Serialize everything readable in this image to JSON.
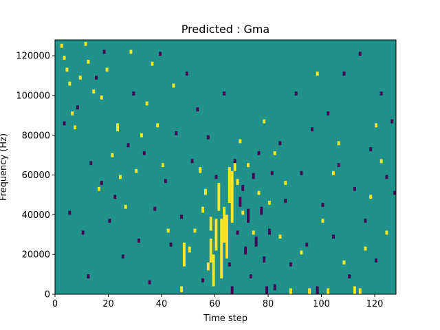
{
  "chart_data": {
    "type": "heatmap",
    "title": "Predicted : Gma",
    "xlabel": "Time step",
    "ylabel": "Frequency (Hz)",
    "xlim": [
      0,
      128
    ],
    "ylim": [
      0,
      128000
    ],
    "x_ticks": [
      0,
      20,
      40,
      60,
      80,
      100,
      120
    ],
    "y_ticks": [
      0,
      20000,
      40000,
      60000,
      80000,
      100000,
      120000
    ],
    "x_tick_labels": [
      "0",
      "20",
      "40",
      "60",
      "80",
      "100",
      "120"
    ],
    "y_tick_labels": [
      "0",
      "20000",
      "40000",
      "60000",
      "80000",
      "100000",
      "120000"
    ],
    "grid": false,
    "n_time_steps": 128,
    "n_freq_bins": 128,
    "freq_bin_hz": 1000,
    "colormap": "viridis",
    "levels": {
      "low": 0,
      "mid": 1,
      "high": 2
    },
    "level_colors": {
      "low": "#440154",
      "mid": "#21918c",
      "high": "#fde725"
    },
    "background_level": "mid",
    "cells": {
      "high": [
        [
          2,
          124,
          2
        ],
        [
          3,
          118,
          2
        ],
        [
          4,
          112,
          2
        ],
        [
          5,
          105,
          2
        ],
        [
          6,
          90,
          2
        ],
        [
          7,
          83,
          2
        ],
        [
          9,
          108,
          2
        ],
        [
          11,
          125,
          2
        ],
        [
          12,
          116,
          2
        ],
        [
          14,
          101,
          2
        ],
        [
          16,
          52,
          2
        ],
        [
          17,
          98,
          2
        ],
        [
          19,
          112,
          2
        ],
        [
          21,
          69,
          2
        ],
        [
          23,
          82,
          4
        ],
        [
          24,
          58,
          2
        ],
        [
          26,
          43,
          2
        ],
        [
          28,
          121,
          2
        ],
        [
          30,
          61,
          2
        ],
        [
          32,
          79,
          2
        ],
        [
          34,
          95,
          2
        ],
        [
          36,
          115,
          2
        ],
        [
          38,
          84,
          2
        ],
        [
          40,
          64,
          2
        ],
        [
          42,
          31,
          2
        ],
        [
          44,
          104,
          2
        ],
        [
          47,
          1,
          3
        ],
        [
          48,
          14,
          12
        ],
        [
          50,
          21,
          3
        ],
        [
          52,
          31,
          2
        ],
        [
          54,
          61,
          3
        ],
        [
          55,
          41,
          3
        ],
        [
          56,
          50,
          3
        ],
        [
          57,
          12,
          4
        ],
        [
          58,
          32,
          7
        ],
        [
          58,
          16,
          12
        ],
        [
          59,
          4,
          16
        ],
        [
          60,
          22,
          16
        ],
        [
          61,
          42,
          14
        ],
        [
          62,
          8,
          30
        ],
        [
          63,
          26,
          18
        ],
        [
          64,
          18,
          22
        ],
        [
          65,
          46,
          18
        ],
        [
          66,
          36,
          26
        ],
        [
          67,
          62,
          4
        ],
        [
          68,
          55,
          3
        ],
        [
          69,
          76,
          2
        ],
        [
          70,
          40,
          2
        ],
        [
          72,
          64,
          2
        ],
        [
          74,
          30,
          2
        ],
        [
          76,
          50,
          2
        ],
        [
          78,
          86,
          2
        ],
        [
          80,
          45,
          2
        ],
        [
          82,
          70,
          2
        ],
        [
          84,
          28,
          2
        ],
        [
          86,
          55,
          2
        ],
        [
          88,
          0,
          3
        ],
        [
          92,
          20,
          2
        ],
        [
          95,
          0,
          3
        ],
        [
          98,
          110,
          2
        ],
        [
          100,
          36,
          2
        ],
        [
          102,
          0,
          3
        ],
        [
          104,
          60,
          2
        ],
        [
          106,
          75,
          2
        ],
        [
          108,
          15,
          2
        ],
        [
          112,
          0,
          4
        ],
        [
          114,
          0,
          3
        ],
        [
          116,
          22,
          2
        ],
        [
          118,
          48,
          2
        ],
        [
          120,
          84,
          2
        ],
        [
          122,
          66,
          2
        ],
        [
          124,
          30,
          2
        ]
      ],
      "low": [
        [
          3,
          85,
          2
        ],
        [
          5,
          40,
          2
        ],
        [
          8,
          93,
          2
        ],
        [
          10,
          30,
          2
        ],
        [
          12,
          8,
          2
        ],
        [
          13,
          65,
          2
        ],
        [
          15,
          108,
          2
        ],
        [
          17,
          55,
          2
        ],
        [
          18,
          121,
          2
        ],
        [
          20,
          36,
          2
        ],
        [
          22,
          48,
          2
        ],
        [
          25,
          18,
          2
        ],
        [
          27,
          74,
          2
        ],
        [
          29,
          100,
          2
        ],
        [
          31,
          26,
          2
        ],
        [
          33,
          70,
          2
        ],
        [
          35,
          5,
          2
        ],
        [
          37,
          42,
          2
        ],
        [
          39,
          120,
          2
        ],
        [
          41,
          56,
          2
        ],
        [
          43,
          24,
          2
        ],
        [
          45,
          80,
          2
        ],
        [
          47,
          38,
          2
        ],
        [
          49,
          110,
          2
        ],
        [
          51,
          66,
          2
        ],
        [
          53,
          92,
          2
        ],
        [
          55,
          6,
          2
        ],
        [
          57,
          78,
          2
        ],
        [
          60,
          58,
          2
        ],
        [
          63,
          100,
          2
        ],
        [
          65,
          14,
          2
        ],
        [
          66,
          0,
          4
        ],
        [
          67,
          62,
          6
        ],
        [
          68,
          30,
          2
        ],
        [
          69,
          44,
          5
        ],
        [
          70,
          52,
          3
        ],
        [
          71,
          20,
          4
        ],
        [
          72,
          36,
          7
        ],
        [
          73,
          8,
          2
        ],
        [
          74,
          58,
          3
        ],
        [
          75,
          24,
          5
        ],
        [
          76,
          70,
          2
        ],
        [
          77,
          40,
          4
        ],
        [
          78,
          16,
          3
        ],
        [
          79,
          0,
          4
        ],
        [
          80,
          30,
          3
        ],
        [
          81,
          60,
          2
        ],
        [
          82,
          2,
          3
        ],
        [
          84,
          75,
          2
        ],
        [
          86,
          46,
          2
        ],
        [
          88,
          14,
          2
        ],
        [
          90,
          100,
          2
        ],
        [
          92,
          60,
          2
        ],
        [
          94,
          24,
          2
        ],
        [
          96,
          82,
          2
        ],
        [
          98,
          0,
          4
        ],
        [
          100,
          44,
          2
        ],
        [
          102,
          90,
          2
        ],
        [
          104,
          28,
          2
        ],
        [
          106,
          64,
          2
        ],
        [
          108,
          110,
          2
        ],
        [
          110,
          8,
          2
        ],
        [
          112,
          52,
          2
        ],
        [
          114,
          120,
          2
        ],
        [
          116,
          36,
          2
        ],
        [
          118,
          72,
          2
        ],
        [
          120,
          16,
          2
        ],
        [
          122,
          100,
          2
        ],
        [
          124,
          58,
          2
        ],
        [
          126,
          86,
          2
        ],
        [
          127,
          50,
          2
        ]
      ]
    }
  }
}
